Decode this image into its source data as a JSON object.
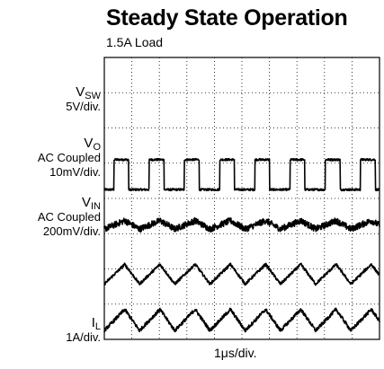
{
  "chart_data": {
    "type": "line",
    "title": "Steady State Operation",
    "subtitle": "1.5A Load",
    "xlabel": "1μs/div.",
    "grid": true,
    "divisions": {
      "x": 10,
      "y": 8
    },
    "traces": [
      {
        "symbol": "V",
        "sub": "SW",
        "scale": "5V/div.",
        "coupling": "",
        "waveform": "square",
        "period_div": 1.28,
        "duty": 0.42,
        "high_div": 5.1,
        "low_div": 4.25,
        "start_div": 0.35,
        "noise_div": 0.03
      },
      {
        "symbol": "V",
        "sub": "O",
        "scale": "10mV/div.",
        "coupling": "AC Coupled",
        "waveform": "triangle",
        "period_div": 1.28,
        "center_div": 3.25,
        "ripple_div": 0.12,
        "noise_div": 0.09
      },
      {
        "symbol": "V",
        "sub": "IN",
        "scale": "200mV/div.",
        "coupling": "AC Coupled",
        "waveform": "triangle",
        "period_div": 1.28,
        "center_div": 1.85,
        "ripple_div": 0.28,
        "noise_div": 0.04
      },
      {
        "symbol": "I",
        "sub": "L",
        "scale": "1A/div.",
        "coupling": "",
        "waveform": "triangle",
        "period_div": 1.28,
        "center_div": 0.55,
        "ripple_div": 0.3,
        "noise_div": 0.05
      }
    ]
  }
}
